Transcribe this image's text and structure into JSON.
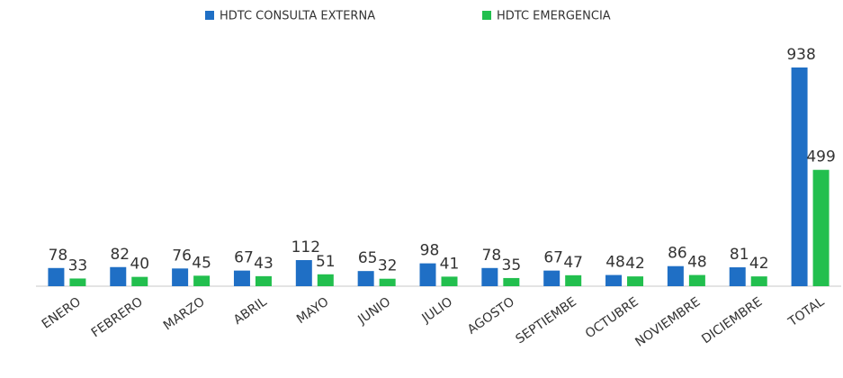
{
  "chart_data": {
    "type": "bar",
    "categories": [
      "ENERO",
      "FEBRERO",
      "MARZO",
      "ABRIL",
      "MAYO",
      "JUNIO",
      "JULIO",
      "AGOSTO",
      "SEPTIEMBE",
      "OCTUBRE",
      "NOVIEMBRE",
      "DICIEMBRE",
      "TOTAL"
    ],
    "series": [
      {
        "name": "HDTC CONSULTA EXTERNA",
        "color": "#1f6fc5",
        "values": [
          78,
          82,
          76,
          67,
          112,
          65,
          98,
          78,
          67,
          48,
          86,
          81,
          938
        ]
      },
      {
        "name": "HDTC EMERGENCIA",
        "color": "#22bf4e",
        "values": [
          33,
          40,
          45,
          43,
          51,
          32,
          41,
          35,
          47,
          42,
          48,
          42,
          499
        ]
      }
    ],
    "legend": "top"
  }
}
